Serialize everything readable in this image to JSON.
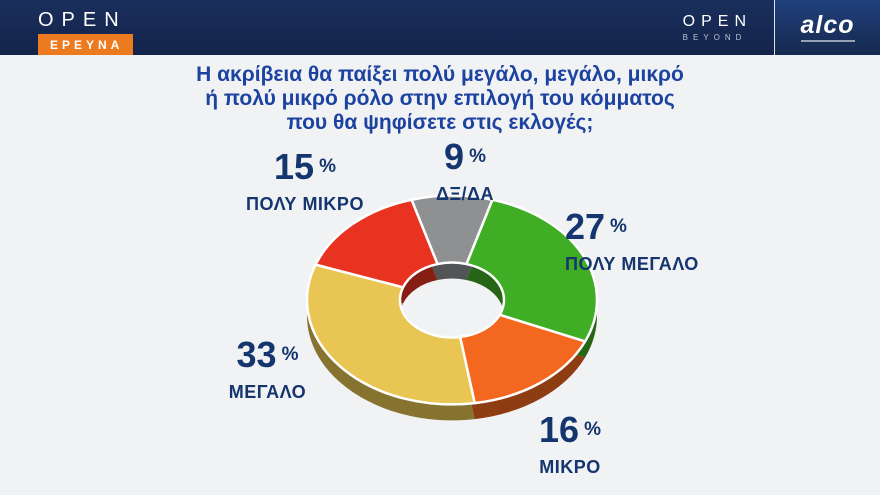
{
  "header": {
    "left_logo": {
      "brand": "OPEN",
      "sub": "ΕΡΕΥΝΑ"
    },
    "right_logo": {
      "brand": "OPEN",
      "sub": "BEYOND",
      "partner": "alco"
    }
  },
  "title": {
    "lines": [
      "Η ακρίβεια θα παίξει πολύ μεγάλο, μεγάλο, μικρό",
      "ή πολύ μικρό ρόλο στην επιλογή του κόμματος",
      "που θα ψηφίσετε στις εκλογές;"
    ]
  },
  "chart_data": {
    "type": "pie",
    "donut": true,
    "title": "Η ακρίβεια θα παίξει πολύ μεγάλο, μεγάλο, μικρό ή πολύ μικρό ρόλο στην επιλογή του κόμματος που θα ψηφίσετε στις εκλογές;",
    "order": "clockwise, first segment centered at top",
    "legend_position": "labels around chart",
    "segments": [
      {
        "label": "ΔΞ/ΔΑ",
        "value": 9,
        "unit": "%",
        "color": "#8e9092"
      },
      {
        "label": "ΠΟΛΥ ΜΕΓΑΛΟ",
        "value": 27,
        "unit": "%",
        "color": "#3fae24"
      },
      {
        "label": "ΜΙΚΡΟ",
        "value": 16,
        "unit": "%",
        "color": "#f4671f"
      },
      {
        "label": "ΜΕΓΑΛΟ",
        "value": 33,
        "unit": "%",
        "color": "#e9c653"
      },
      {
        "label": "ΠΟΛΥ ΜΙΚΡΟ",
        "value": 15,
        "unit": "%",
        "color": "#e83321"
      }
    ]
  },
  "colors": {
    "header_bg": "#15264a",
    "title_text": "#1c43a0",
    "label_text": "#14356e",
    "accent_orange": "#ec7b1f"
  }
}
